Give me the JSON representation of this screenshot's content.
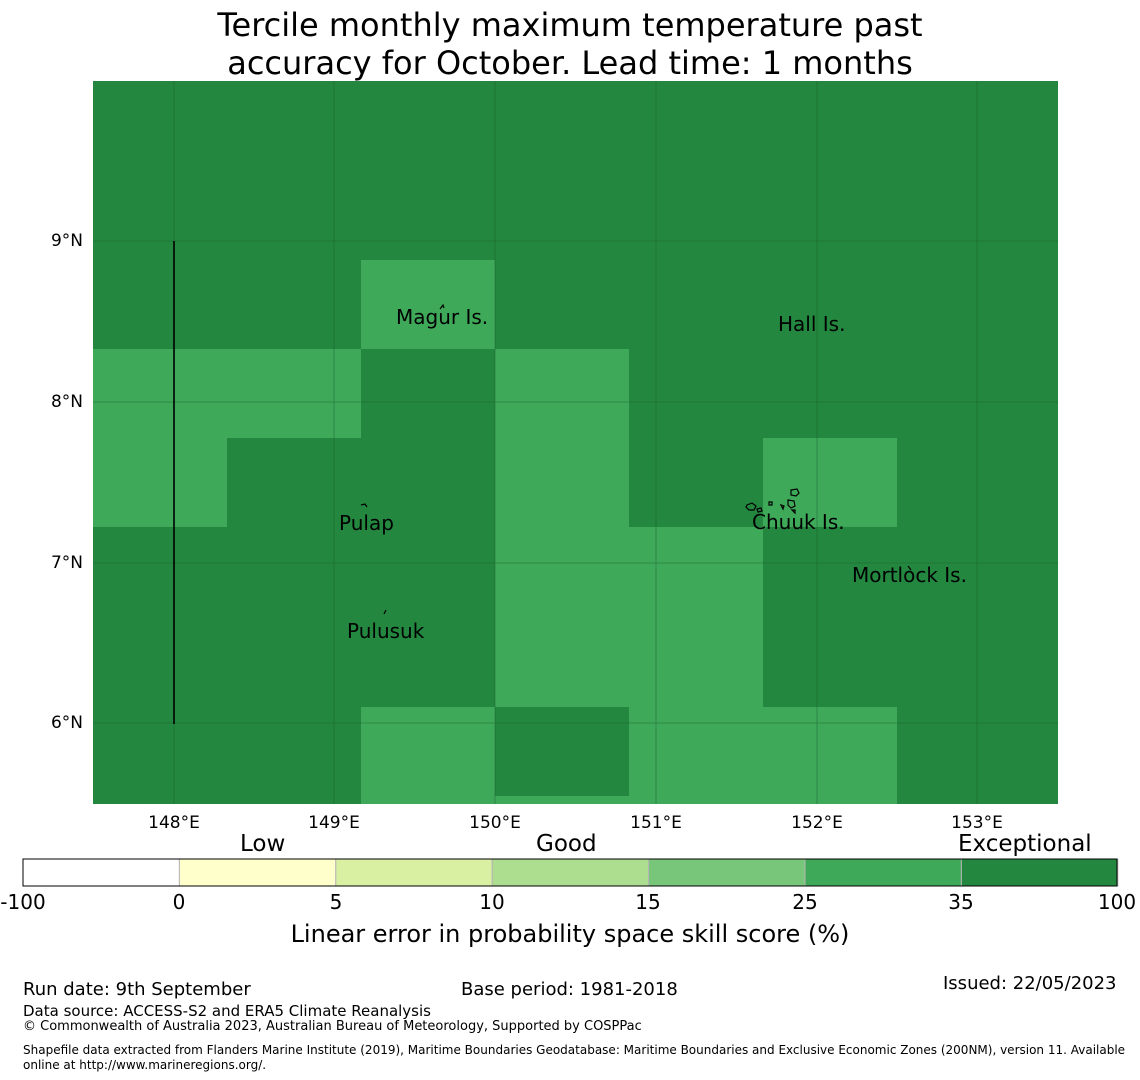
{
  "title": {
    "line1": "Tercile monthly maximum temperature past",
    "line2": "accuracy for October. Lead time: 1 months"
  },
  "colors": {
    "exceptional": "#23873f",
    "band_25_35": "#3fa95a",
    "gridline": "#1a5a2c"
  },
  "map": {
    "lon_range": [
      147.5,
      153.5
    ],
    "lat_range": [
      5.5,
      10.0
    ],
    "cell_size_deg": 0.833,
    "y_ticks": [
      "9°N",
      "8°N",
      "7°N",
      "6°N"
    ],
    "x_ticks": [
      "148°E",
      "149°E",
      "150°E",
      "151°E",
      "152°E",
      "153°E"
    ],
    "places": {
      "magur": "Magur Is.",
      "hall": "Hall Is.",
      "pulap": "Pulap",
      "chuuk": "Chuuk Is.",
      "mortlock": "Mortlock Is.",
      "pulusuk": "Pulusuk"
    }
  },
  "colorbar": {
    "categories": {
      "low": "Low",
      "good": "Good",
      "exceptional": "Exceptional"
    },
    "ticks": [
      "-100",
      "0",
      "5",
      "10",
      "15",
      "25",
      "35",
      "100"
    ],
    "colors": [
      "#ffffff",
      "#ffffcc",
      "#d9f0a3",
      "#addd8e",
      "#78c679",
      "#3fa95a",
      "#23873f"
    ],
    "label": "Linear error in probability space skill score (%)"
  },
  "footer": {
    "run_date": "Run date: 9th September",
    "base_period": "Base period: 1981-2018",
    "issued": "Issued: 22/05/2023",
    "data_source": "Data source: ACCESS-S2 and ERA5 Climate Reanalysis",
    "copyright": "© Commonwealth of Australia 2023, Australian Bureau of Meteorology, Supported by COSPPac",
    "shapefile": "Shapefile data extracted from Flanders Marine Institute (2019), Maritime Boundaries Geodatabase: Maritime Boundaries and Exclusive Economic Zones (200NM), version 11. Available online at http://www.marineregions.org/."
  }
}
